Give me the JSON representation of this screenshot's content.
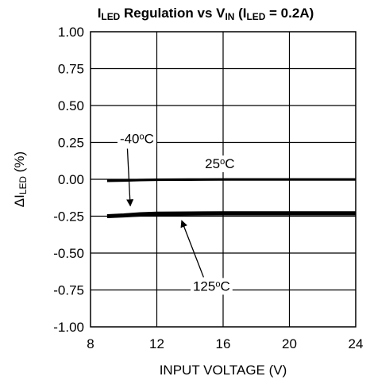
{
  "chart_data": {
    "type": "line",
    "title": {
      "parts": [
        {
          "text": "I"
        },
        {
          "text": "LED",
          "sub": true
        },
        {
          "text": " Regulation vs V"
        },
        {
          "text": "IN",
          "sub": true
        },
        {
          "text": " (I"
        },
        {
          "text": "LED",
          "sub": true
        },
        {
          "text": " = 0.2A)"
        }
      ]
    },
    "xlabel": "INPUT VOLTAGE (V)",
    "ylabel": {
      "parts": [
        {
          "text": "ΔI"
        },
        {
          "text": "LED",
          "sub": true
        },
        {
          "text": " (%)"
        }
      ]
    },
    "xlim": [
      8,
      24
    ],
    "ylim": [
      -1.0,
      1.0
    ],
    "xticks": [
      8,
      12,
      16,
      20,
      24
    ],
    "xtick_labels": [
      "8",
      "12",
      "16",
      "20",
      "24"
    ],
    "yticks": [
      1.0,
      0.75,
      0.5,
      0.25,
      0.0,
      -0.25,
      -0.5,
      -0.75,
      -1.0
    ],
    "ytick_labels": [
      "1.00",
      "0.75",
      "0.50",
      "0.25",
      "0.00",
      "-0.25",
      "-0.50",
      "-0.75",
      "-1.00"
    ],
    "grid": true,
    "series": [
      {
        "name": "25°C",
        "color": "#000000",
        "x": [
          9,
          10,
          11,
          12,
          14,
          16,
          20,
          24
        ],
        "y": [
          -0.01,
          -0.008,
          -0.005,
          -0.003,
          -0.002,
          -0.001,
          -0.001,
          -0.001
        ]
      },
      {
        "name": "-40°C",
        "color": "#000000",
        "x": [
          9,
          10,
          11,
          12,
          14,
          16,
          20,
          24
        ],
        "y": [
          -0.245,
          -0.24,
          -0.232,
          -0.228,
          -0.226,
          -0.225,
          -0.225,
          -0.225
        ]
      },
      {
        "name": "125°C",
        "color": "#000000",
        "x": [
          9,
          10,
          11,
          12,
          14,
          16,
          20,
          24
        ],
        "y": [
          -0.255,
          -0.25,
          -0.244,
          -0.24,
          -0.238,
          -0.237,
          -0.237,
          -0.237
        ]
      }
    ],
    "annotations": [
      {
        "id": "ann-minus40",
        "parts": [
          {
            "text": "-40"
          },
          {
            "text": "o",
            "sup": true
          },
          {
            "text": "C"
          }
        ],
        "x": 10.8,
        "y": 0.245,
        "arrow_to": [
          10.4,
          -0.18
        ]
      },
      {
        "id": "ann-25",
        "parts": [
          {
            "text": "25"
          },
          {
            "text": "o",
            "sup": true
          },
          {
            "text": "C"
          }
        ],
        "x": 15.8,
        "y": 0.075
      },
      {
        "id": "ann-125",
        "parts": [
          {
            "text": "125"
          },
          {
            "text": "o",
            "sup": true
          },
          {
            "text": "C"
          }
        ],
        "x": 15.3,
        "y": -0.755,
        "arrow_to": [
          13.5,
          -0.28
        ]
      }
    ]
  }
}
